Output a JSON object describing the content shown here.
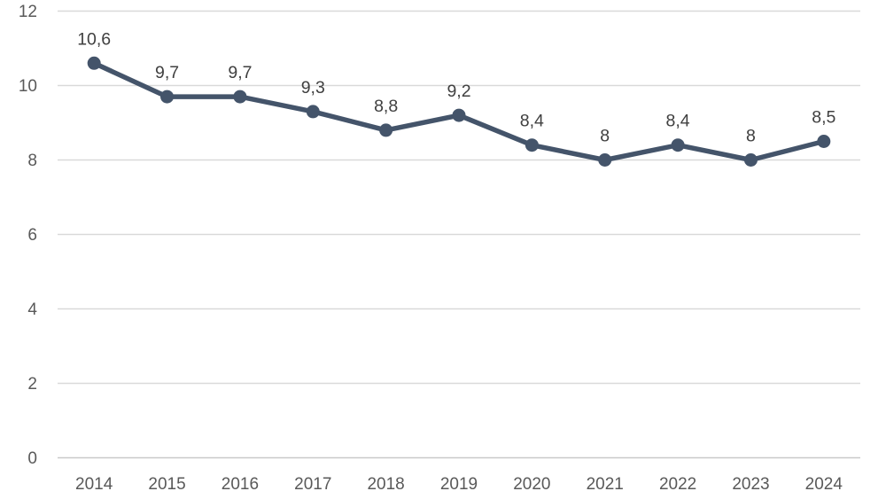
{
  "chart_data": {
    "type": "line",
    "categories": [
      "2014",
      "2015",
      "2016",
      "2017",
      "2018",
      "2019",
      "2020",
      "2021",
      "2022",
      "2023",
      "2024"
    ],
    "series": [
      {
        "name": "series-1",
        "values": [
          10.6,
          9.7,
          9.7,
          9.3,
          8.8,
          9.2,
          8.4,
          8,
          8.4,
          8,
          8.5
        ],
        "data_labels": [
          "10,6",
          "9,7",
          "9,7",
          "9,3",
          "8,8",
          "9,2",
          "8,4",
          "8",
          "8,4",
          "8",
          "8,5"
        ]
      }
    ],
    "xlabel": "",
    "ylabel": "",
    "ylim": [
      0,
      12
    ],
    "yticks": [
      0,
      2,
      4,
      6,
      8,
      10,
      12
    ],
    "ytick_labels": [
      "0",
      "2",
      "4",
      "6",
      "8",
      "10",
      "12"
    ],
    "grid": "horizontal",
    "legend": "none",
    "marker_style": "circle",
    "decimal_separator": ",",
    "colors": {
      "line": "#44546A",
      "marker": "#44546A",
      "gridline": "#D9D9D9",
      "zero_line": "#C9C9C9",
      "tick_label": "#595959",
      "data_label": "#404040",
      "background": "#FFFFFF"
    }
  }
}
